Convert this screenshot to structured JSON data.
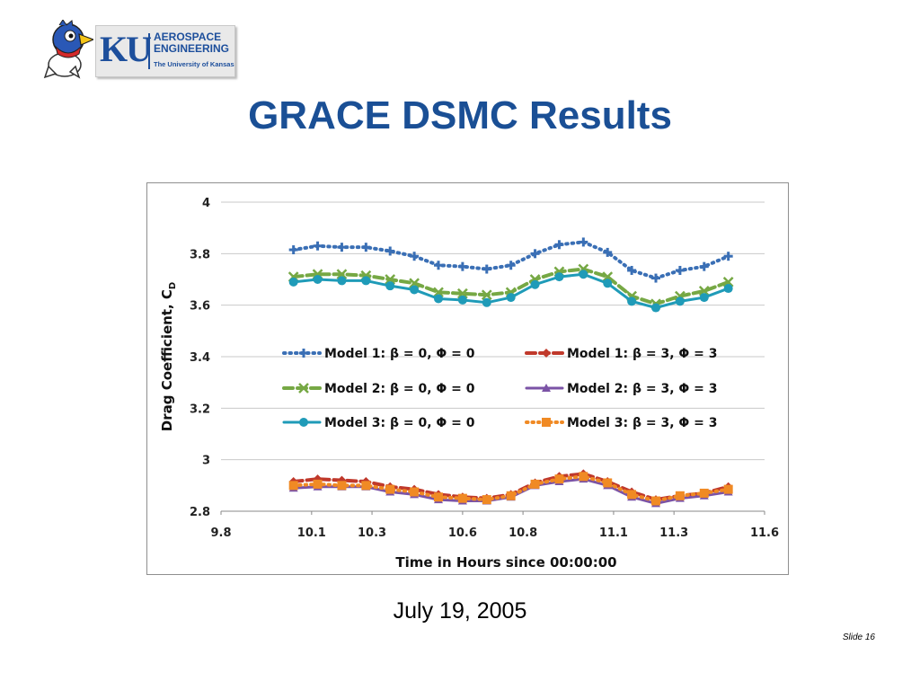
{
  "logo": {
    "letters": "KU",
    "department": "AEROSPACE ENGINEERING",
    "university": "The University of Kansas",
    "mascot": "jayhawk-mascot"
  },
  "slide": {
    "title": "GRACE DSMC Results",
    "caption": "July 19, 2005",
    "number": "Slide 16"
  },
  "chart_data": {
    "type": "line",
    "title": "",
    "xlabel": "Time in Hours since 00:00:00",
    "ylabel": "Drag Coefficient, C",
    "ylabel_subscript": "D",
    "xlim": [
      9.8,
      11.6
    ],
    "ylim": [
      2.8,
      4.0
    ],
    "xticks": [
      9.8,
      10.1,
      10.3,
      10.6,
      10.8,
      11.1,
      11.3,
      11.6
    ],
    "xtick_labels": [
      "9.8",
      "10.1",
      "10.3",
      "10.6",
      "10.8",
      "11.1",
      "11.3",
      "11.6"
    ],
    "yticks": [
      2.8,
      3.0,
      3.2,
      3.4,
      3.6,
      3.8,
      4.0
    ],
    "ytick_labels": [
      "2.8",
      "3",
      "3.2",
      "3.4",
      "3.6",
      "3.8",
      "4"
    ],
    "grid": "horizontal",
    "legend": "inside-center",
    "x": [
      10.04,
      10.12,
      10.2,
      10.28,
      10.36,
      10.44,
      10.52,
      10.6,
      10.68,
      10.76,
      10.84,
      10.92,
      11.0,
      11.08,
      11.16,
      11.24,
      11.32,
      11.4,
      11.48
    ],
    "series": [
      {
        "name": "Model 1: β = 0, Φ = 0",
        "color": "#3a6fb5",
        "dash": "dots",
        "marker": "plus",
        "values": [
          3.815,
          3.83,
          3.825,
          3.825,
          3.81,
          3.79,
          3.755,
          3.75,
          3.74,
          3.755,
          3.8,
          3.835,
          3.845,
          3.805,
          3.735,
          3.705,
          3.735,
          3.75,
          3.79
        ]
      },
      {
        "name": "Model 1: β = 3, Φ = 3",
        "color": "#c0392b",
        "dash": "dash",
        "marker": "diamond",
        "values": [
          2.915,
          2.925,
          2.92,
          2.915,
          2.895,
          2.885,
          2.865,
          2.855,
          2.85,
          2.865,
          2.91,
          2.935,
          2.945,
          2.915,
          2.875,
          2.845,
          2.86,
          2.87,
          2.895
        ]
      },
      {
        "name": "Model 2: β = 0, Φ = 0",
        "color": "#76a844",
        "dash": "dash",
        "marker": "x",
        "values": [
          3.71,
          3.72,
          3.72,
          3.715,
          3.7,
          3.685,
          3.65,
          3.645,
          3.64,
          3.65,
          3.7,
          3.73,
          3.74,
          3.71,
          3.635,
          3.605,
          3.635,
          3.655,
          3.69
        ]
      },
      {
        "name": "Model 2: β = 3, Φ = 3",
        "color": "#7b53a6",
        "dash": "solid",
        "marker": "triangle",
        "values": [
          2.89,
          2.895,
          2.895,
          2.895,
          2.875,
          2.865,
          2.845,
          2.84,
          2.84,
          2.855,
          2.9,
          2.915,
          2.925,
          2.9,
          2.855,
          2.83,
          2.85,
          2.86,
          2.875
        ]
      },
      {
        "name": "Model 3: β = 0, Φ = 0",
        "color": "#1f9bb8",
        "dash": "solid",
        "marker": "circle",
        "values": [
          3.69,
          3.7,
          3.695,
          3.695,
          3.675,
          3.66,
          3.625,
          3.62,
          3.61,
          3.63,
          3.68,
          3.71,
          3.72,
          3.685,
          3.615,
          3.59,
          3.615,
          3.63,
          3.665
        ]
      },
      {
        "name": "Model 3: β = 3, Φ = 3",
        "color": "#f08a24",
        "dash": "dots",
        "marker": "square",
        "values": [
          2.9,
          2.905,
          2.9,
          2.9,
          2.885,
          2.875,
          2.855,
          2.85,
          2.845,
          2.86,
          2.905,
          2.925,
          2.935,
          2.91,
          2.865,
          2.84,
          2.86,
          2.87,
          2.885
        ]
      }
    ]
  }
}
